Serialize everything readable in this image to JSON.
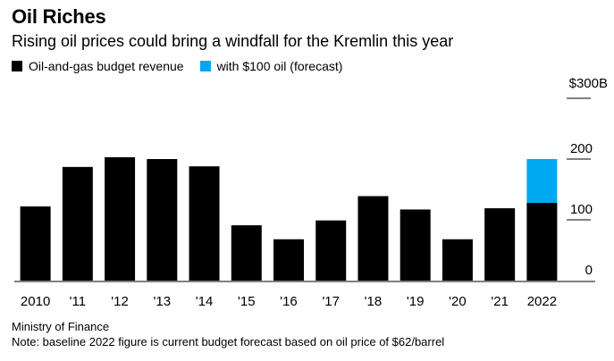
{
  "header": {
    "title": "Oil Riches",
    "subtitle": "Rising oil prices could bring a windfall for the Kremlin this year"
  },
  "legend": {
    "items": [
      {
        "label": "Oil-and-gas budget revenue",
        "color": "#000000"
      },
      {
        "label": "with $100 oil (forecast)",
        "color": "#00a8f0"
      }
    ]
  },
  "footer": {
    "source": "Ministry of Finance",
    "note": "Note: baseline 2022 figure is current budget forecast based on oil price of $62/barrel"
  },
  "chart_data": {
    "type": "bar",
    "stacked": true,
    "categories": [
      "2010",
      "'11",
      "'12",
      "'13",
      "'14",
      "'15",
      "'16",
      "'17",
      "'18",
      "'19",
      "'20",
      "'21",
      "2022"
    ],
    "series": [
      {
        "name": "Oil-and-gas budget revenue",
        "color": "#000000",
        "values": [
          122,
          187,
          203,
          200,
          188,
          91,
          68,
          99,
          139,
          117,
          68,
          119,
          128
        ]
      },
      {
        "name": "with $100 oil (forecast)",
        "color": "#00a8f0",
        "values": [
          0,
          0,
          0,
          0,
          0,
          0,
          0,
          0,
          0,
          0,
          0,
          0,
          72
        ]
      }
    ],
    "yticks": [
      {
        "value": 0,
        "label": "0"
      },
      {
        "value": 100,
        "label": "100"
      },
      {
        "value": 200,
        "label": "200"
      },
      {
        "value": 300,
        "label": "$300B"
      }
    ],
    "ylim": [
      0,
      300
    ],
    "grid": false,
    "legend_position": "top-left"
  }
}
